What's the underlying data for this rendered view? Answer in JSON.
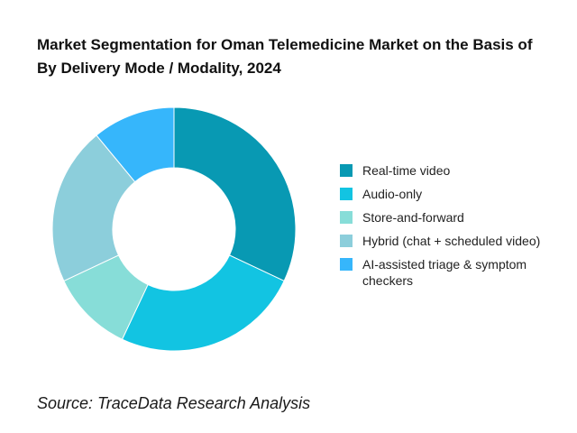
{
  "chart_data": {
    "type": "pie",
    "title": "Market Segmentation for Oman Telemedicine Market on the Basis of By Delivery Mode / Modality, 2024",
    "categories": [
      "Real-time video",
      "Audio-only",
      "Store-and-forward",
      "Hybrid (chat + scheduled video)",
      "AI-assisted triage & symptom checkers"
    ],
    "values": [
      32,
      25,
      11,
      21,
      11
    ],
    "colors": [
      "#0899b3",
      "#12c4e2",
      "#87ddd8",
      "#8ccedb",
      "#36b6fb"
    ],
    "donut": true,
    "legend_position": "right",
    "source": "Source: TraceData Research Analysis"
  }
}
